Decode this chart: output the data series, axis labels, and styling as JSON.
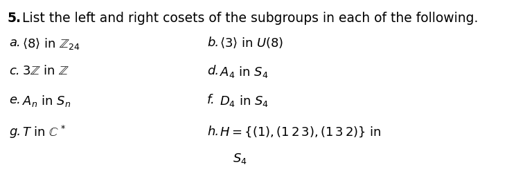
{
  "title_bold": "5.",
  "title_text": " List the left and right cosets of the subgroups in each of the following.",
  "background_color": "#ffffff",
  "title_fontsize": 13.5,
  "item_fontsize": 13.0,
  "items_left": [
    {
      "label": "a.",
      "text_parts": [
        {
          "text": "⟨8⟩ in ",
          "style": "italic_math"
        },
        {
          "text": "Z",
          "style": "italic"
        },
        {
          "text": "24",
          "style": "subscript"
        }
      ]
    },
    {
      "label": "c.",
      "text_parts": [
        {
          "text": "3",
          "style": "normal"
        },
        {
          "text": "Z",
          "style": "italic"
        },
        {
          "text": " in ",
          "style": "normal"
        },
        {
          "text": "Z",
          "style": "italic"
        }
      ]
    },
    {
      "label": "e.",
      "text_parts": [
        {
          "text": "A",
          "style": "italic"
        },
        {
          "text": "n",
          "style": "subscript_italic"
        },
        {
          "text": " in ",
          "style": "normal"
        },
        {
          "text": "S",
          "style": "italic"
        },
        {
          "text": "n",
          "style": "subscript_italic"
        }
      ]
    },
    {
      "label": "g.",
      "text_parts": [
        {
          "text": "T",
          "style": "italic"
        },
        {
          "text": " in ",
          "style": "normal"
        },
        {
          "text": "C",
          "style": "italic"
        },
        {
          "text": "*",
          "style": "superscript"
        }
      ]
    }
  ],
  "items_right": [
    {
      "label": "b.",
      "text_parts": [
        {
          "text": "⟨3⟩ in ",
          "style": "italic_math"
        },
        {
          "text": "U",
          "style": "italic"
        },
        {
          "text": "(8)",
          "style": "normal"
        }
      ]
    },
    {
      "label": "d.",
      "text_parts": [
        {
          "text": "A",
          "style": "italic"
        },
        {
          "text": "4",
          "style": "subscript"
        },
        {
          "text": " in ",
          "style": "normal"
        },
        {
          "text": "S",
          "style": "italic"
        },
        {
          "text": "4",
          "style": "subscript"
        }
      ]
    },
    {
      "label": "f.",
      "text_parts": [
        {
          "text": "D",
          "style": "italic"
        },
        {
          "text": "4",
          "style": "subscript"
        },
        {
          "text": " in ",
          "style": "normal"
        },
        {
          "text": "S",
          "style": "italic"
        },
        {
          "text": "4",
          "style": "subscript"
        }
      ]
    },
    {
      "label": "h.",
      "text_parts": [
        {
          "text": "H",
          "style": "italic"
        },
        {
          "text": " = {(1),(1 2 3),(1 3 2)} in",
          "style": "normal"
        },
        {
          "text": "S",
          "style": "italic_newline"
        },
        {
          "text": "4",
          "style": "subscript_newline"
        }
      ]
    }
  ]
}
